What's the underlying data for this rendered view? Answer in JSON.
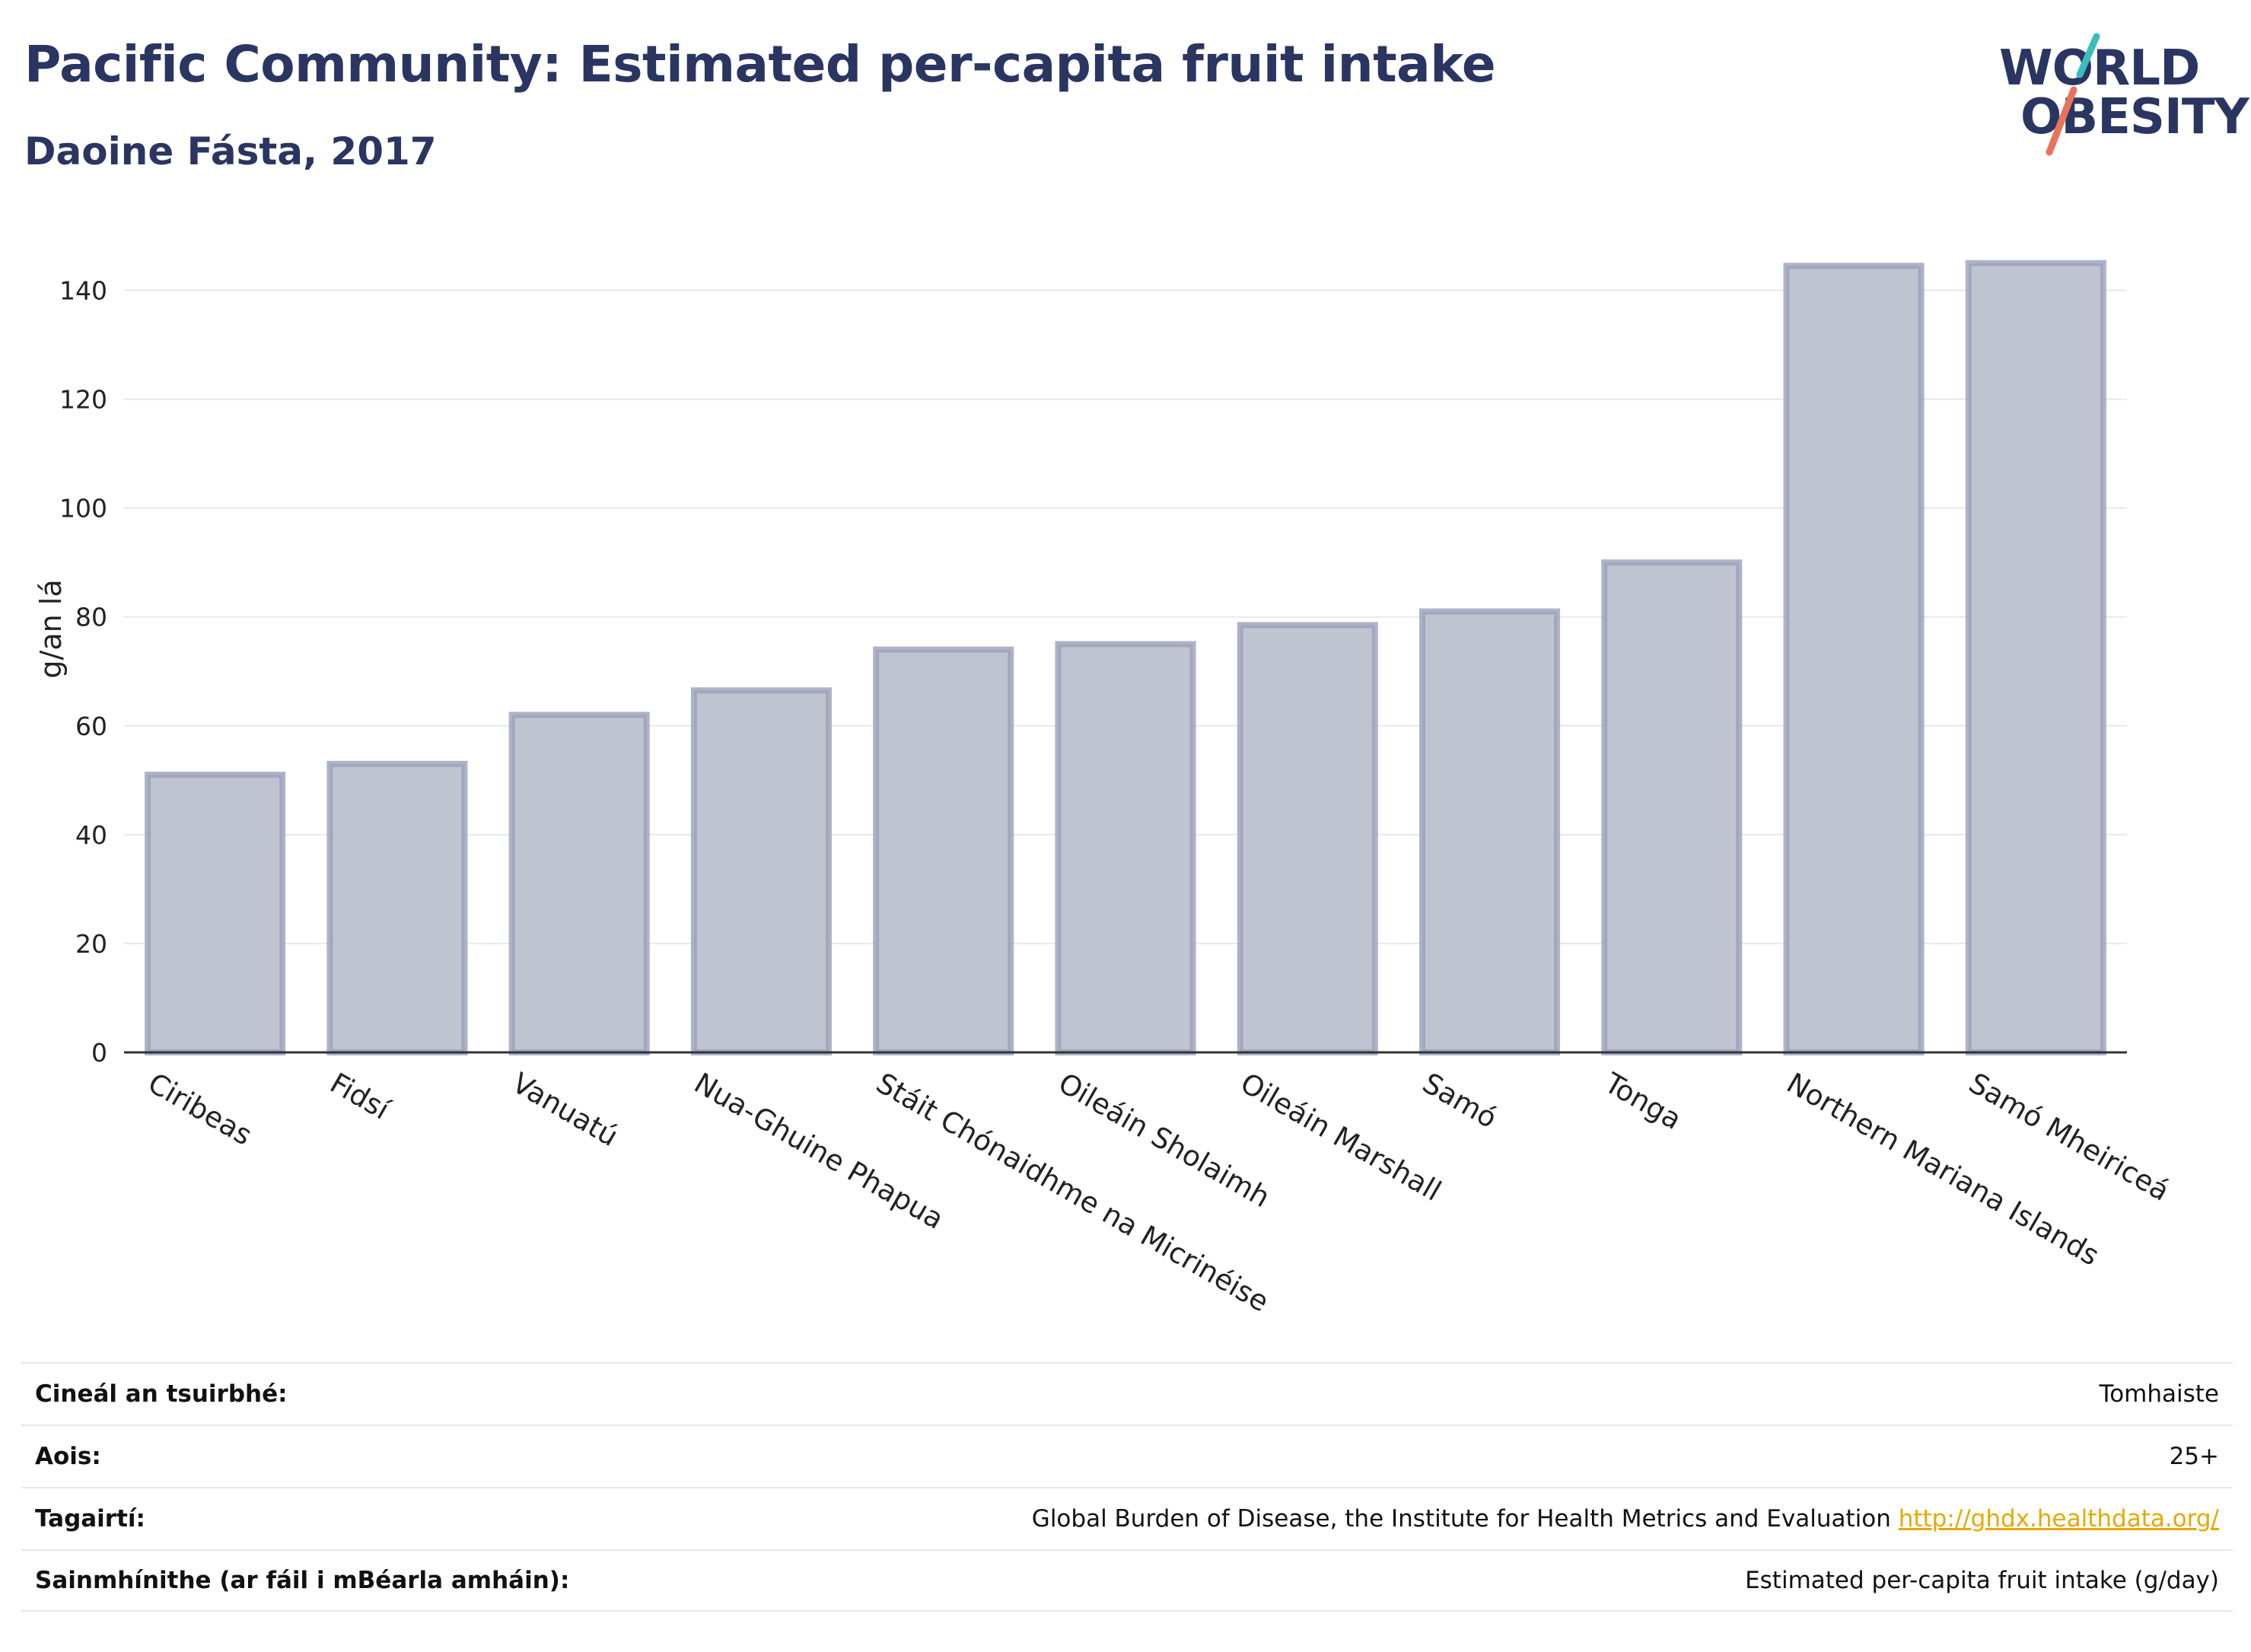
{
  "title": "Pacific Community: Estimated per-capita fruit intake",
  "subtitle": "Daoine Fásta, 2017",
  "logo": {
    "line1": "WORLD",
    "line2": "OBESITY",
    "accent_teal": "#3bbdbd",
    "accent_coral": "#e8735a"
  },
  "chart_data": {
    "type": "bar",
    "ylabel": "g/an lá",
    "xlabel": "",
    "ylim": [
      0,
      150
    ],
    "yticks": [
      0,
      20,
      40,
      60,
      80,
      100,
      120,
      140
    ],
    "grid": true,
    "categories": [
      "Ciribeas",
      "Fidsí",
      "Vanuatú",
      "Nua-Ghuine Phapua",
      "Stáit Chónaidhme na Micrinéise",
      "Oileáin Sholaimh",
      "Oileáin Marshall",
      "Samó",
      "Tonga",
      "Northern Mariana Islands",
      "Samó Mheiriceá"
    ],
    "values": [
      51,
      53,
      62,
      66.5,
      74,
      75,
      78.5,
      81,
      90,
      144.5,
      145
    ],
    "bar_fill": "#c0c4d1",
    "bar_stroke": "#9aa0b9"
  },
  "info": [
    {
      "label": "Cineál an tsuirbhé:",
      "value": "Tomhaiste",
      "link": ""
    },
    {
      "label": "Aois:",
      "value": "25+",
      "link": ""
    },
    {
      "label": "Tagairtí:",
      "value": "Global Burden of Disease, the Institute for Health Metrics and Evaluation",
      "link": "http://ghdx.healthdata.org/"
    },
    {
      "label": "Sainmhínithe (ar fáil i mBéarla amháin):",
      "value": "Estimated per-capita fruit intake (g/day)",
      "link": ""
    }
  ]
}
